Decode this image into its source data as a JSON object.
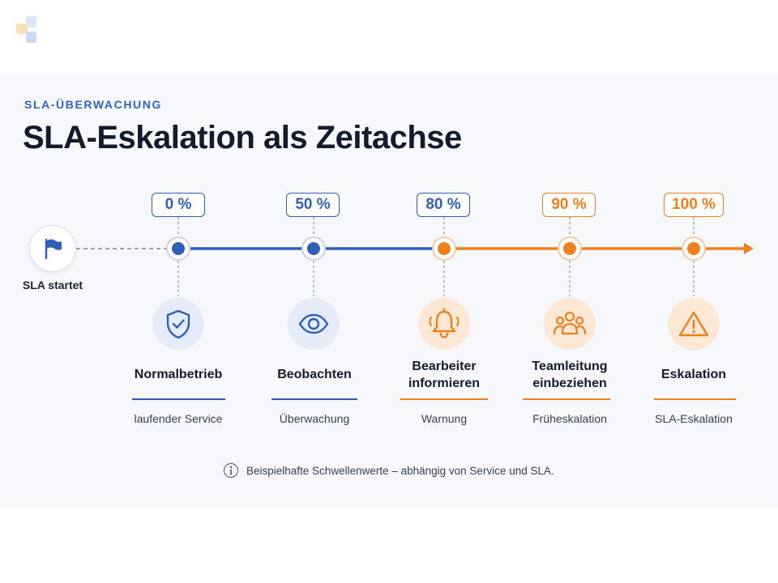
{
  "header": {
    "eyebrow": "SLA-ÜBERWACHUNG",
    "title": "SLA-Eskalation als Zeitachse"
  },
  "start": {
    "label": "SLA startet",
    "icon": "flag-icon"
  },
  "stages": [
    {
      "percent": "0 %",
      "title": "Normalbetrieb",
      "subtitle": "laufender Service",
      "icon": "shield-check-icon",
      "color": "#2f5fb8"
    },
    {
      "percent": "50 %",
      "title": "Beobachten",
      "subtitle": "Überwachung",
      "icon": "eye-icon",
      "color": "#2f5fb8"
    },
    {
      "percent": "80 %",
      "title": "Bearbeiter\ninformieren",
      "subtitle": "Warnung",
      "icon": "bell-icon",
      "color": "#f07f1e"
    },
    {
      "percent": "90 %",
      "title": "Teamleitung\neinbeziehen",
      "subtitle": "Früheskalation",
      "icon": "team-icon",
      "color": "#f07f1e"
    },
    {
      "percent": "100 %",
      "title": "Eskalation",
      "subtitle": "SLA-Eskalation",
      "icon": "warning-icon",
      "color": "#f07f1e"
    }
  ],
  "note": "Beispielhafte Schwellenwerte – abhängig von Service und SLA.",
  "colors": {
    "blue": "#2f5fb8",
    "orange": "#f07f1e",
    "accent_text": "#2d63c8"
  }
}
